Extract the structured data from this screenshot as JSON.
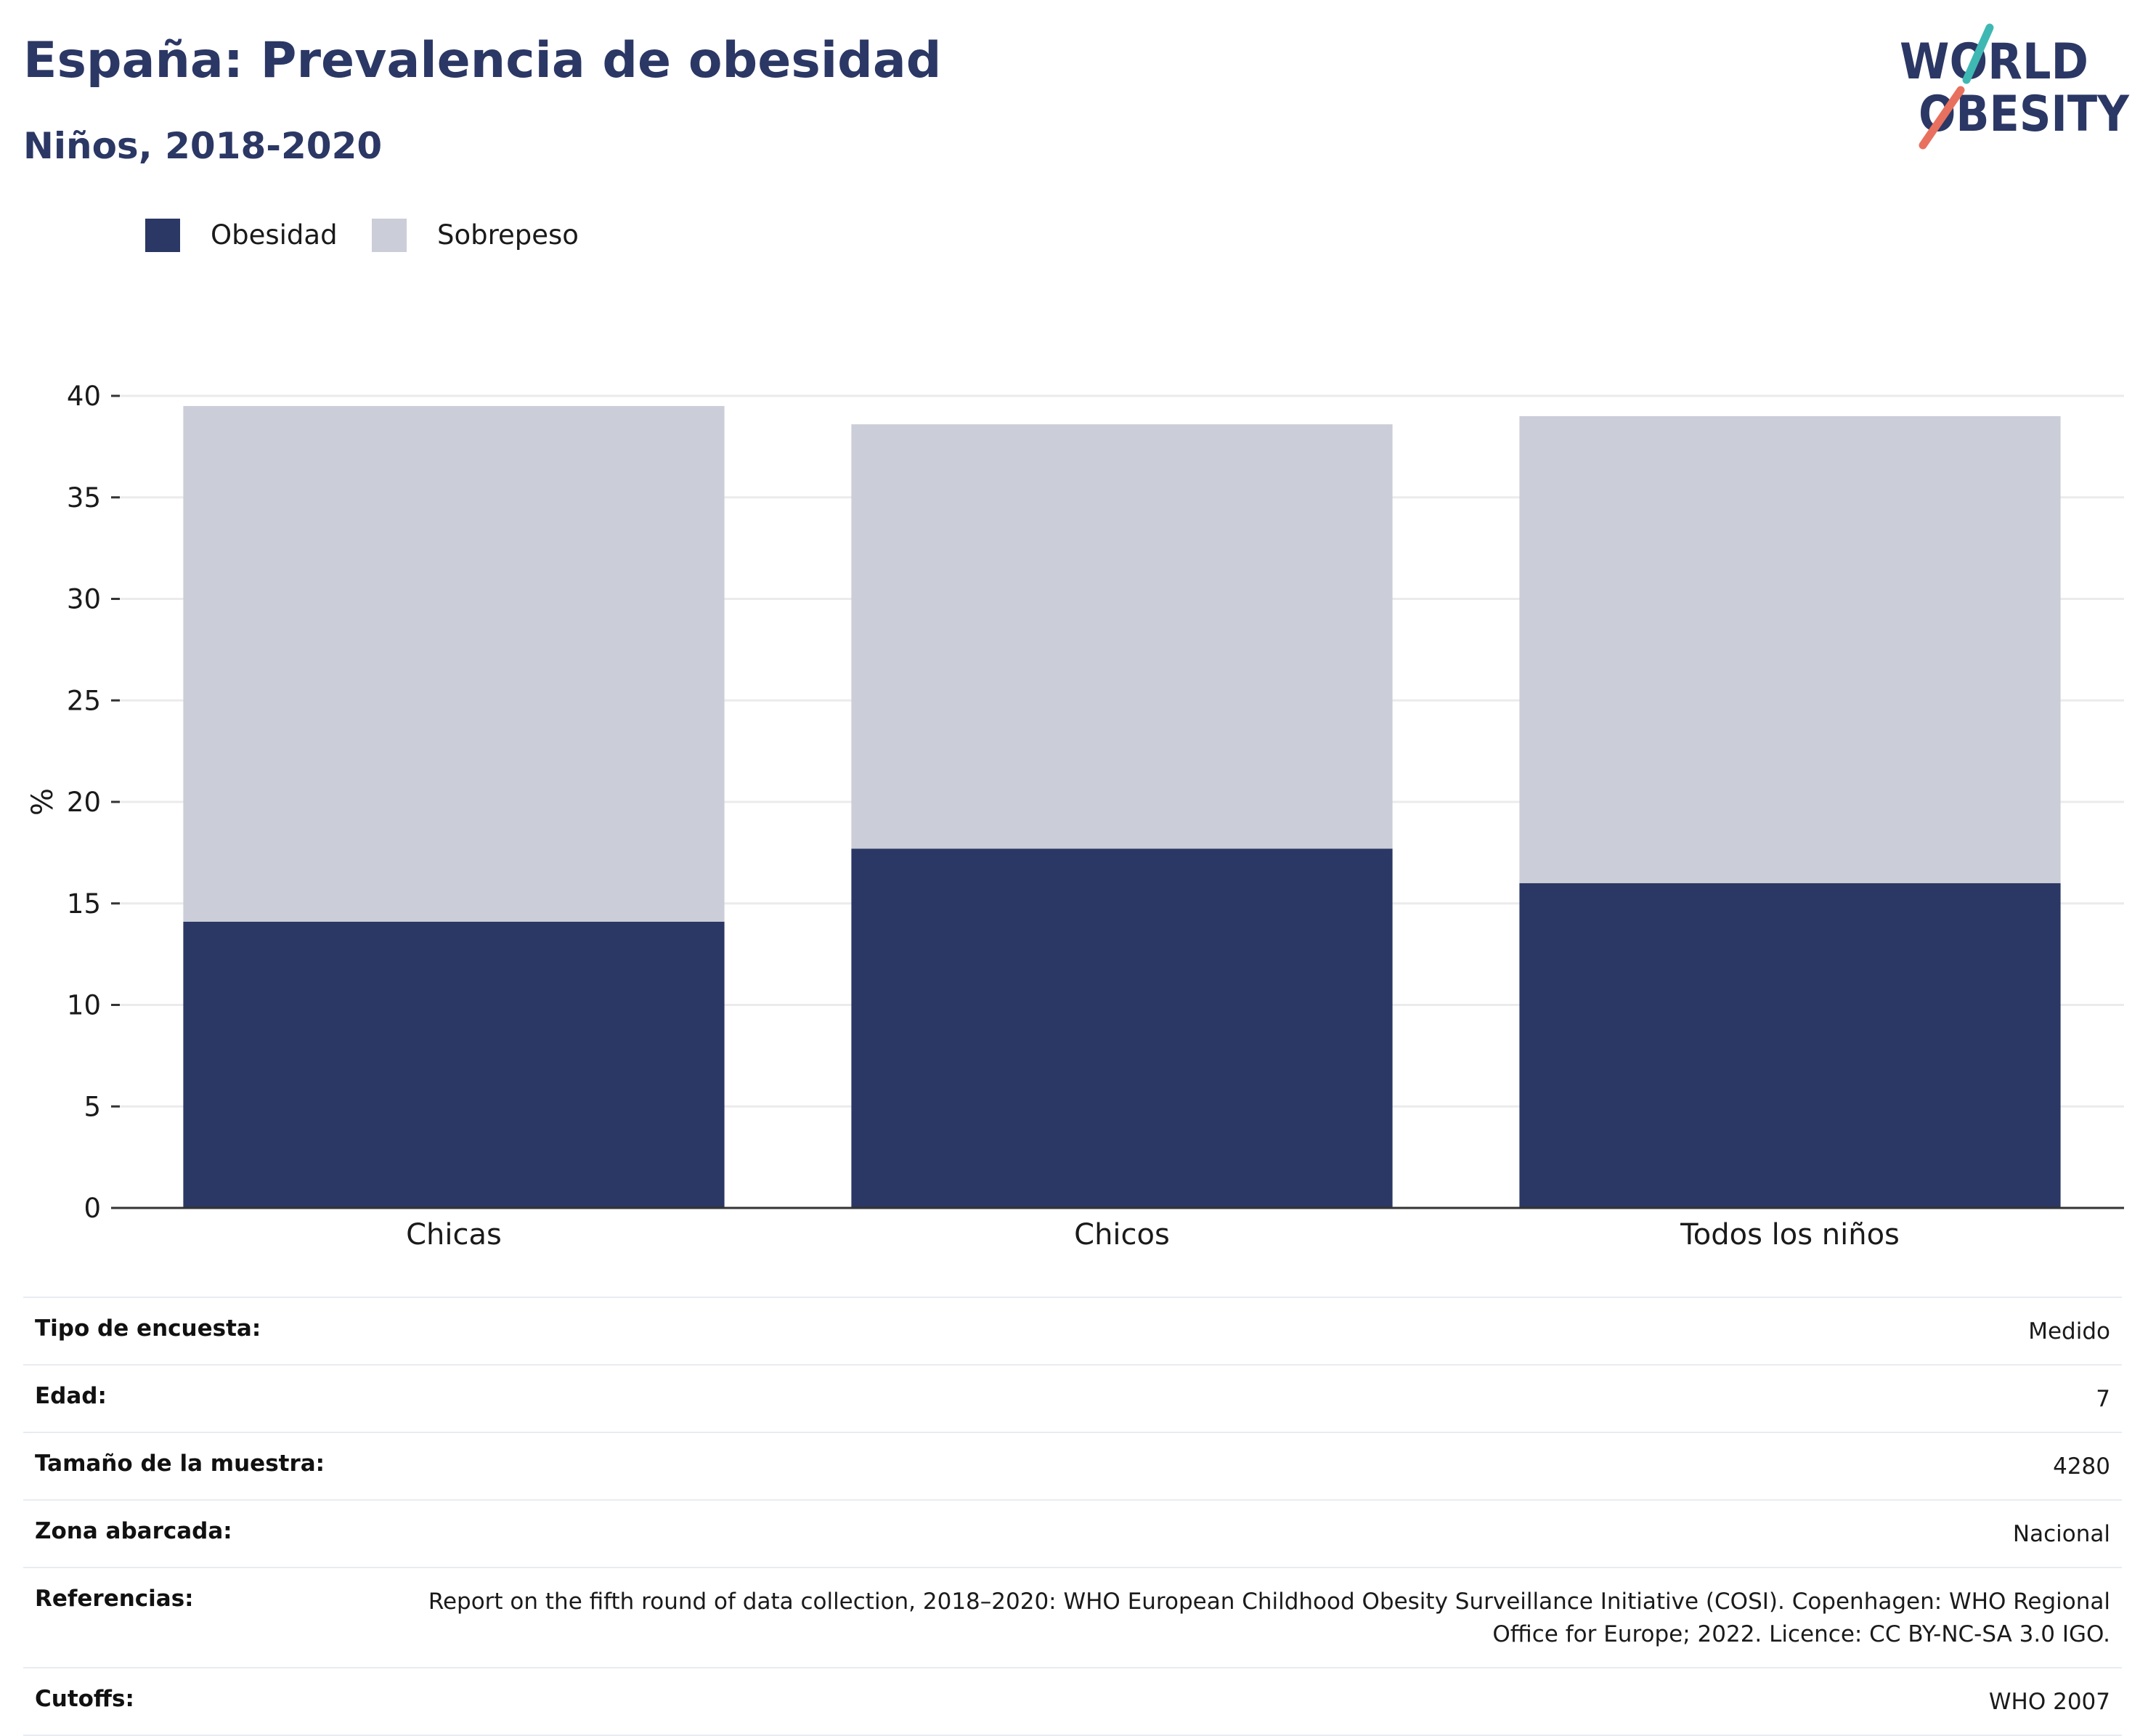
{
  "header": {
    "title": "España: Prevalencia de obesidad",
    "subtitle": "Niños, 2018-2020"
  },
  "logo": {
    "line1": "WORLD",
    "line2": "OBESITY",
    "colors": {
      "navy": "#2b3764",
      "teal": "#3fb8b3",
      "coral": "#e8705f"
    }
  },
  "chart_data": {
    "type": "bar",
    "stacked": true,
    "categories": [
      "Chicas",
      "Chicos",
      "Todos los niños"
    ],
    "series": [
      {
        "name": "Obesidad",
        "color": "#2b3764",
        "values": [
          14.1,
          17.7,
          16.0
        ]
      },
      {
        "name": "Sobrepeso",
        "color": "#cbcdd8",
        "values": [
          25.4,
          20.9,
          23.0
        ]
      }
    ],
    "ylabel": "%",
    "ylim": [
      0,
      40
    ],
    "yticks": [
      0,
      5,
      10,
      15,
      20,
      25,
      30,
      35,
      40
    ],
    "grid": true,
    "legend_position": "top-left"
  },
  "info": {
    "rows": [
      {
        "label": "Tipo de encuesta:",
        "value": "Medido"
      },
      {
        "label": "Edad:",
        "value": "7"
      },
      {
        "label": "Tamaño de la muestra:",
        "value": "4280"
      },
      {
        "label": "Zona abarcada:",
        "value": "Nacional"
      },
      {
        "label": "Referencias:",
        "value": "Report on the fifth round of data collection, 2018–2020: WHO European Childhood Obesity Surveillance Initiative (COSI). Copenhagen: WHO Regional Office for Europe; 2022. Licence: CC BY-NC-SA 3.0 IGO."
      },
      {
        "label": "Cutoffs:",
        "value": "WHO 2007"
      }
    ]
  }
}
